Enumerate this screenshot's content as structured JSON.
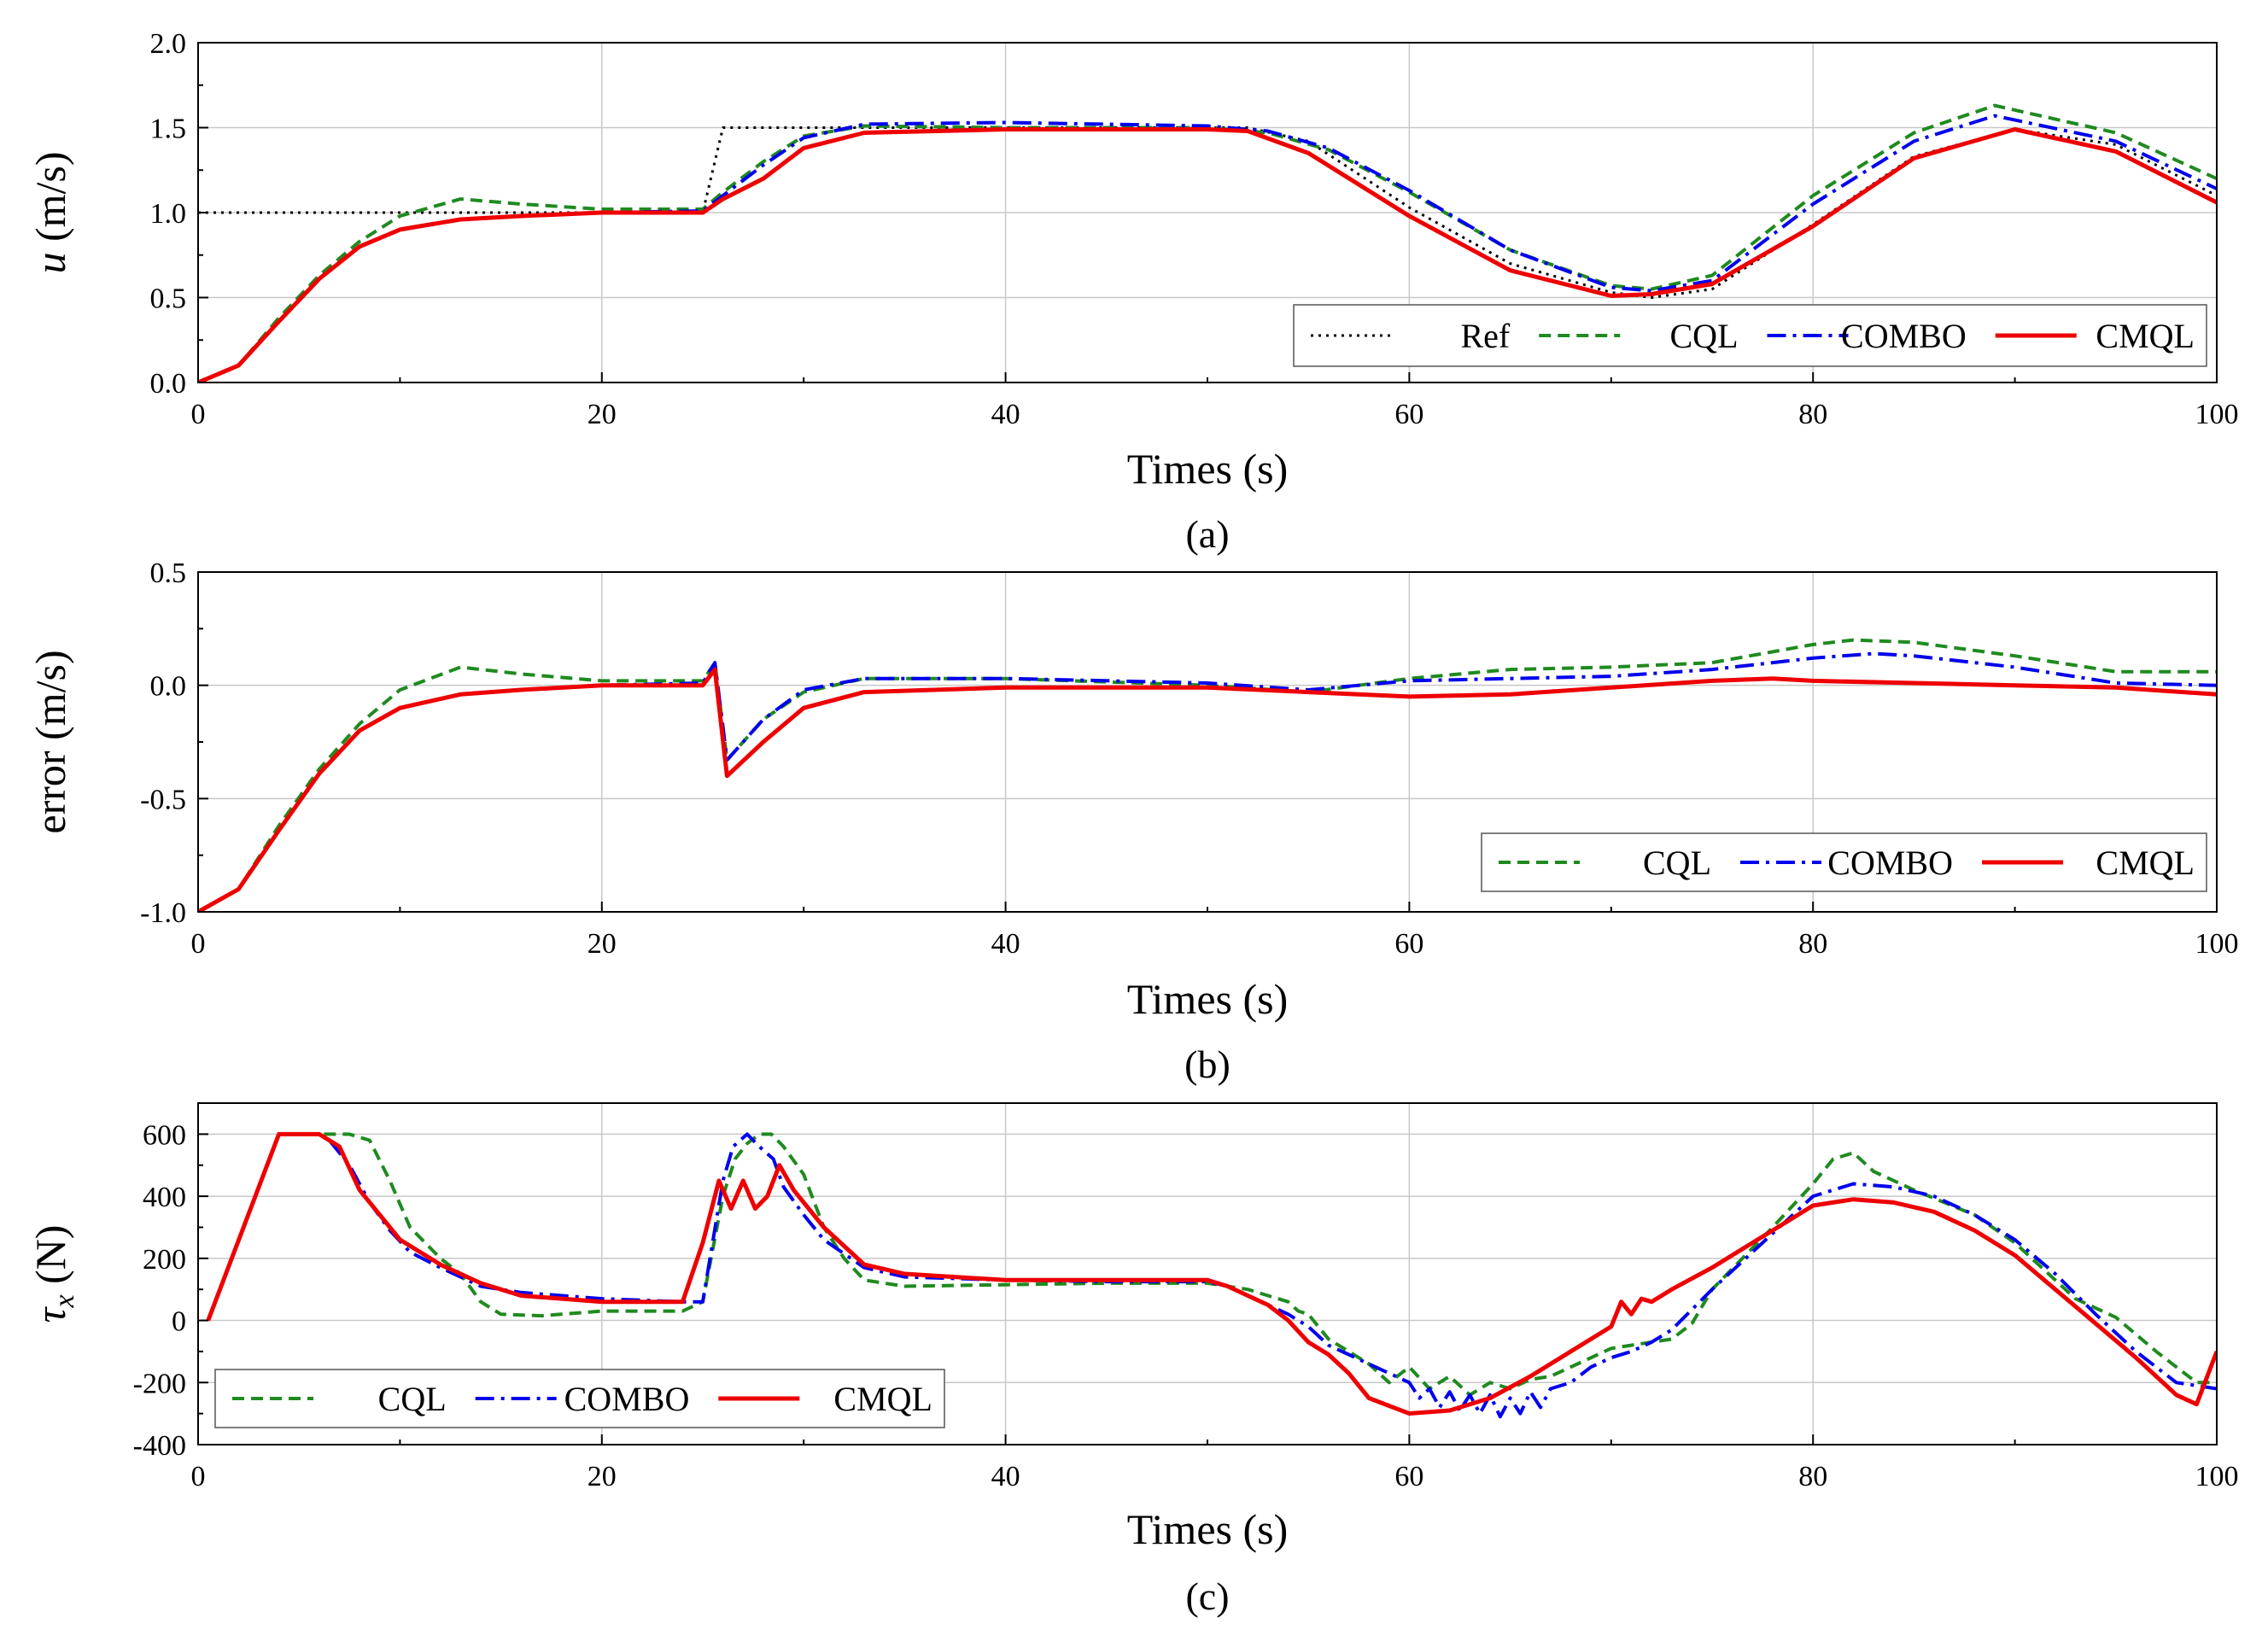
{
  "series_styles": [
    {
      "name": "Ref",
      "color": "#000000",
      "dash": "3,6",
      "width": 3
    },
    {
      "name": "CQL",
      "color": "#1f8a1f",
      "dash": "14,8",
      "width": 4
    },
    {
      "name": "COMBO",
      "color": "#0000ee",
      "dash": "22,8,4,8",
      "width": 4
    },
    {
      "name": "CMQL",
      "color": "#ee0000",
      "dash": "",
      "width": 5
    }
  ],
  "chart_data": [
    {
      "type": "line",
      "caption": "(a)",
      "xlabel": "Times (s)",
      "ylabel_var": "u",
      "ylabel_unit": " (m/s)",
      "xlim": [
        0,
        100
      ],
      "ylim": [
        0,
        2
      ],
      "xticks": [
        0,
        20,
        40,
        60,
        80,
        100
      ],
      "xtick_labels": [
        "0",
        "20",
        "40",
        "60",
        "80",
        "100"
      ],
      "yticks": [
        0,
        0.5,
        1,
        1.5,
        2
      ],
      "ytick_labels": [
        "0.0",
        "0.5",
        "1.0",
        "1.5",
        "2.0"
      ],
      "legend_location": "bottom-right",
      "legend": [
        "Ref",
        "CQL",
        "COMBO",
        "CMQL"
      ],
      "series": [
        {
          "name": "Ref",
          "x": [
            0,
            25,
            26,
            52,
            55,
            60,
            65,
            70,
            72,
            75,
            80,
            85,
            90,
            95,
            100
          ],
          "y": [
            1,
            1,
            1.5,
            1.5,
            1.42,
            1.03,
            0.7,
            0.53,
            0.5,
            0.55,
            0.93,
            1.33,
            1.49,
            1.4,
            1.1
          ]
        },
        {
          "name": "CQL",
          "x": [
            0,
            2,
            4,
            6,
            8,
            10,
            13,
            16,
            20,
            25,
            26,
            28,
            30,
            33,
            40,
            45,
            50,
            53,
            56,
            60,
            65,
            70,
            72,
            75,
            80,
            85,
            89,
            95,
            100
          ],
          "y": [
            0,
            0.1,
            0.38,
            0.63,
            0.83,
            0.98,
            1.08,
            1.05,
            1.02,
            1.02,
            1.12,
            1.3,
            1.45,
            1.51,
            1.5,
            1.5,
            1.5,
            1.47,
            1.37,
            1.12,
            0.78,
            0.57,
            0.55,
            0.63,
            1.1,
            1.47,
            1.63,
            1.47,
            1.2
          ]
        },
        {
          "name": "COMBO",
          "x": [
            0,
            2,
            4,
            6,
            8,
            10,
            13,
            16,
            20,
            25,
            26,
            28,
            30,
            33,
            40,
            45,
            50,
            53,
            56,
            60,
            65,
            70,
            72,
            75,
            80,
            85,
            89,
            95,
            100
          ],
          "y": [
            0,
            0.1,
            0.36,
            0.61,
            0.8,
            0.9,
            0.96,
            0.98,
            1.0,
            1.01,
            1.1,
            1.28,
            1.44,
            1.52,
            1.53,
            1.52,
            1.51,
            1.48,
            1.38,
            1.13,
            0.78,
            0.56,
            0.54,
            0.6,
            1.05,
            1.42,
            1.57,
            1.42,
            1.14
          ]
        },
        {
          "name": "CMQL",
          "x": [
            0,
            2,
            4,
            6,
            8,
            10,
            13,
            16,
            20,
            25,
            26,
            28,
            30,
            33,
            40,
            45,
            50,
            52,
            55,
            60,
            65,
            70,
            72,
            75,
            80,
            85,
            90,
            95,
            100
          ],
          "y": [
            0,
            0.1,
            0.36,
            0.61,
            0.8,
            0.9,
            0.96,
            0.98,
            1.0,
            1.0,
            1.08,
            1.2,
            1.38,
            1.47,
            1.49,
            1.49,
            1.49,
            1.48,
            1.35,
            0.98,
            0.66,
            0.51,
            0.52,
            0.58,
            0.92,
            1.32,
            1.49,
            1.36,
            1.06
          ]
        }
      ]
    },
    {
      "type": "line",
      "caption": "(b)",
      "xlabel": "Times (s)",
      "ylabel": "error (m/s)",
      "xlim": [
        0,
        100
      ],
      "ylim": [
        -1,
        0.5
      ],
      "xticks": [
        0,
        20,
        40,
        60,
        80,
        100
      ],
      "xtick_labels": [
        "0",
        "20",
        "40",
        "60",
        "80",
        "100"
      ],
      "yticks": [
        -1,
        -0.5,
        0,
        0.5
      ],
      "ytick_labels": [
        "-1.0",
        "-0.5",
        "0.0",
        "0.5"
      ],
      "legend_location": "bottom-right",
      "legend": [
        "CQL",
        "COMBO",
        "CMQL"
      ],
      "series": [
        {
          "name": "CQL",
          "x": [
            0,
            2,
            4,
            6,
            8,
            10,
            13,
            16,
            20,
            25,
            25.6,
            26.2,
            28,
            30,
            33,
            40,
            50,
            55,
            60,
            65,
            70,
            75,
            80,
            82,
            85,
            90,
            95,
            100
          ],
          "y": [
            -1,
            -0.9,
            -0.62,
            -0.37,
            -0.17,
            -0.02,
            0.08,
            0.05,
            0.02,
            0.02,
            0.1,
            -0.33,
            -0.15,
            -0.03,
            0.03,
            0.03,
            0.0,
            -0.03,
            0.03,
            0.07,
            0.08,
            0.1,
            0.18,
            0.2,
            0.19,
            0.13,
            0.06,
            0.06
          ]
        },
        {
          "name": "COMBO",
          "x": [
            0,
            2,
            4,
            6,
            8,
            10,
            13,
            16,
            20,
            25,
            25.6,
            26.2,
            28,
            30,
            33,
            40,
            50,
            55,
            60,
            65,
            70,
            75,
            80,
            83,
            85,
            90,
            95,
            100
          ],
          "y": [
            -1,
            -0.9,
            -0.64,
            -0.39,
            -0.2,
            -0.1,
            -0.04,
            -0.02,
            0.0,
            0.01,
            0.1,
            -0.33,
            -0.15,
            -0.02,
            0.03,
            0.03,
            0.01,
            -0.02,
            0.02,
            0.03,
            0.04,
            0.07,
            0.12,
            0.14,
            0.13,
            0.08,
            0.01,
            0.0
          ]
        },
        {
          "name": "CMQL",
          "x": [
            0,
            2,
            4,
            6,
            8,
            10,
            13,
            16,
            20,
            25,
            25.6,
            26.2,
            28,
            30,
            33,
            40,
            50,
            55,
            60,
            65,
            70,
            75,
            78,
            80,
            85,
            90,
            95,
            100
          ],
          "y": [
            -1,
            -0.9,
            -0.64,
            -0.39,
            -0.2,
            -0.1,
            -0.04,
            -0.02,
            0.0,
            0.0,
            0.07,
            -0.4,
            -0.25,
            -0.1,
            -0.03,
            -0.01,
            -0.01,
            -0.03,
            -0.05,
            -0.04,
            -0.01,
            0.02,
            0.03,
            0.02,
            0.01,
            0.0,
            -0.01,
            -0.04
          ]
        }
      ]
    },
    {
      "type": "line",
      "caption": "(c)",
      "xlabel": "Times (s)",
      "ylabel_var": "τ",
      "ylabel_sub": "x",
      "ylabel_unit": " (N)",
      "xlim": [
        0,
        100
      ],
      "ylim": [
        -400,
        700
      ],
      "xticks": [
        0,
        20,
        40,
        60,
        80,
        100
      ],
      "xtick_labels": [
        "0",
        "20",
        "40",
        "60",
        "80",
        "100"
      ],
      "yticks": [
        -400,
        -200,
        0,
        200,
        400,
        600
      ],
      "ytick_labels": [
        "-400",
        "-200",
        "0",
        "200",
        "400",
        "600"
      ],
      "legend_location": "bottom-left",
      "legend": [
        "CQL",
        "COMBO",
        "CMQL"
      ],
      "series": [
        {
          "name": "CQL",
          "x": [
            0.5,
            4,
            6,
            7.5,
            8.5,
            9.5,
            10.5,
            12,
            13,
            14,
            15,
            17,
            20,
            24,
            25,
            26,
            26.6,
            27.2,
            27.8,
            28.4,
            29,
            30,
            31,
            32,
            33,
            35,
            40,
            45,
            50,
            52,
            53,
            54,
            54.5,
            55,
            56,
            57,
            58,
            59,
            60,
            61,
            62,
            63,
            64,
            65,
            66,
            67,
            68,
            69,
            70,
            71,
            72,
            73,
            74,
            75,
            78,
            80,
            81,
            82,
            83,
            85,
            88,
            90,
            92,
            93,
            95,
            97,
            99,
            100
          ],
          "y": [
            0,
            600,
            600,
            600,
            580,
            450,
            300,
            200,
            150,
            60,
            20,
            15,
            30,
            30,
            60,
            400,
            520,
            570,
            600,
            600,
            560,
            470,
            300,
            200,
            130,
            110,
            115,
            120,
            120,
            100,
            80,
            60,
            30,
            20,
            -60,
            -100,
            -140,
            -200,
            -150,
            -220,
            -180,
            -240,
            -200,
            -220,
            -190,
            -180,
            -150,
            -120,
            -90,
            -80,
            -70,
            -60,
            -10,
            100,
            300,
            440,
            520,
            540,
            480,
            420,
            340,
            250,
            130,
            70,
            10,
            -100,
            -200,
            -200
          ]
        },
        {
          "name": "COMBO",
          "x": [
            0.5,
            4,
            5,
            6,
            6.5,
            7.5,
            8.5,
            9.5,
            10.5,
            12,
            14,
            16,
            20,
            24,
            25,
            26,
            26.5,
            27.2,
            27.8,
            28.5,
            29,
            30,
            31,
            33,
            35,
            40,
            45,
            50,
            51,
            52,
            53,
            54,
            55,
            56,
            57,
            58,
            59,
            60,
            60.5,
            61,
            61.5,
            62,
            62.5,
            63,
            63.5,
            64,
            64.5,
            65,
            65.5,
            66,
            66.5,
            67,
            68,
            69,
            70,
            71,
            72,
            73,
            75,
            78,
            80,
            82,
            84,
            86,
            88,
            90,
            92,
            94,
            96,
            98,
            100
          ],
          "y": [
            0,
            600,
            600,
            600,
            580,
            500,
            380,
            290,
            220,
            170,
            110,
            90,
            70,
            60,
            60,
            450,
            560,
            600,
            560,
            520,
            430,
            340,
            260,
            170,
            140,
            130,
            125,
            125,
            110,
            80,
            50,
            20,
            -20,
            -80,
            -110,
            -140,
            -170,
            -200,
            -250,
            -220,
            -280,
            -230,
            -290,
            -240,
            -300,
            -240,
            -310,
            -250,
            -300,
            -230,
            -280,
            -220,
            -200,
            -150,
            -120,
            -100,
            -70,
            -30,
            100,
            280,
            400,
            440,
            430,
            400,
            340,
            260,
            150,
            20,
            -100,
            -200,
            -220
          ]
        },
        {
          "name": "CMQL",
          "x": [
            0.5,
            4,
            5,
            6,
            7,
            8,
            9,
            10,
            12,
            14,
            16,
            20,
            24,
            25,
            25.8,
            26.4,
            27,
            27.6,
            28.2,
            28.8,
            29.5,
            31,
            33,
            35,
            40,
            45,
            50,
            51,
            52,
            53,
            54,
            55,
            56,
            57,
            58,
            60,
            62,
            64,
            66,
            68,
            70,
            70.5,
            71,
            71.5,
            72,
            72.5,
            73,
            75,
            78,
            80,
            82,
            84,
            86,
            88,
            90,
            92,
            94,
            96,
            98,
            99,
            100
          ],
          "y": [
            0,
            600,
            600,
            600,
            560,
            420,
            340,
            260,
            180,
            120,
            80,
            60,
            60,
            250,
            450,
            360,
            450,
            360,
            400,
            500,
            420,
            300,
            180,
            150,
            130,
            130,
            130,
            110,
            80,
            50,
            0,
            -70,
            -110,
            -170,
            -250,
            -300,
            -290,
            -250,
            -180,
            -100,
            -20,
            60,
            20,
            70,
            60,
            80,
            100,
            170,
            290,
            370,
            390,
            380,
            350,
            290,
            210,
            100,
            -10,
            -120,
            -240,
            -270,
            -100
          ]
        }
      ]
    }
  ]
}
